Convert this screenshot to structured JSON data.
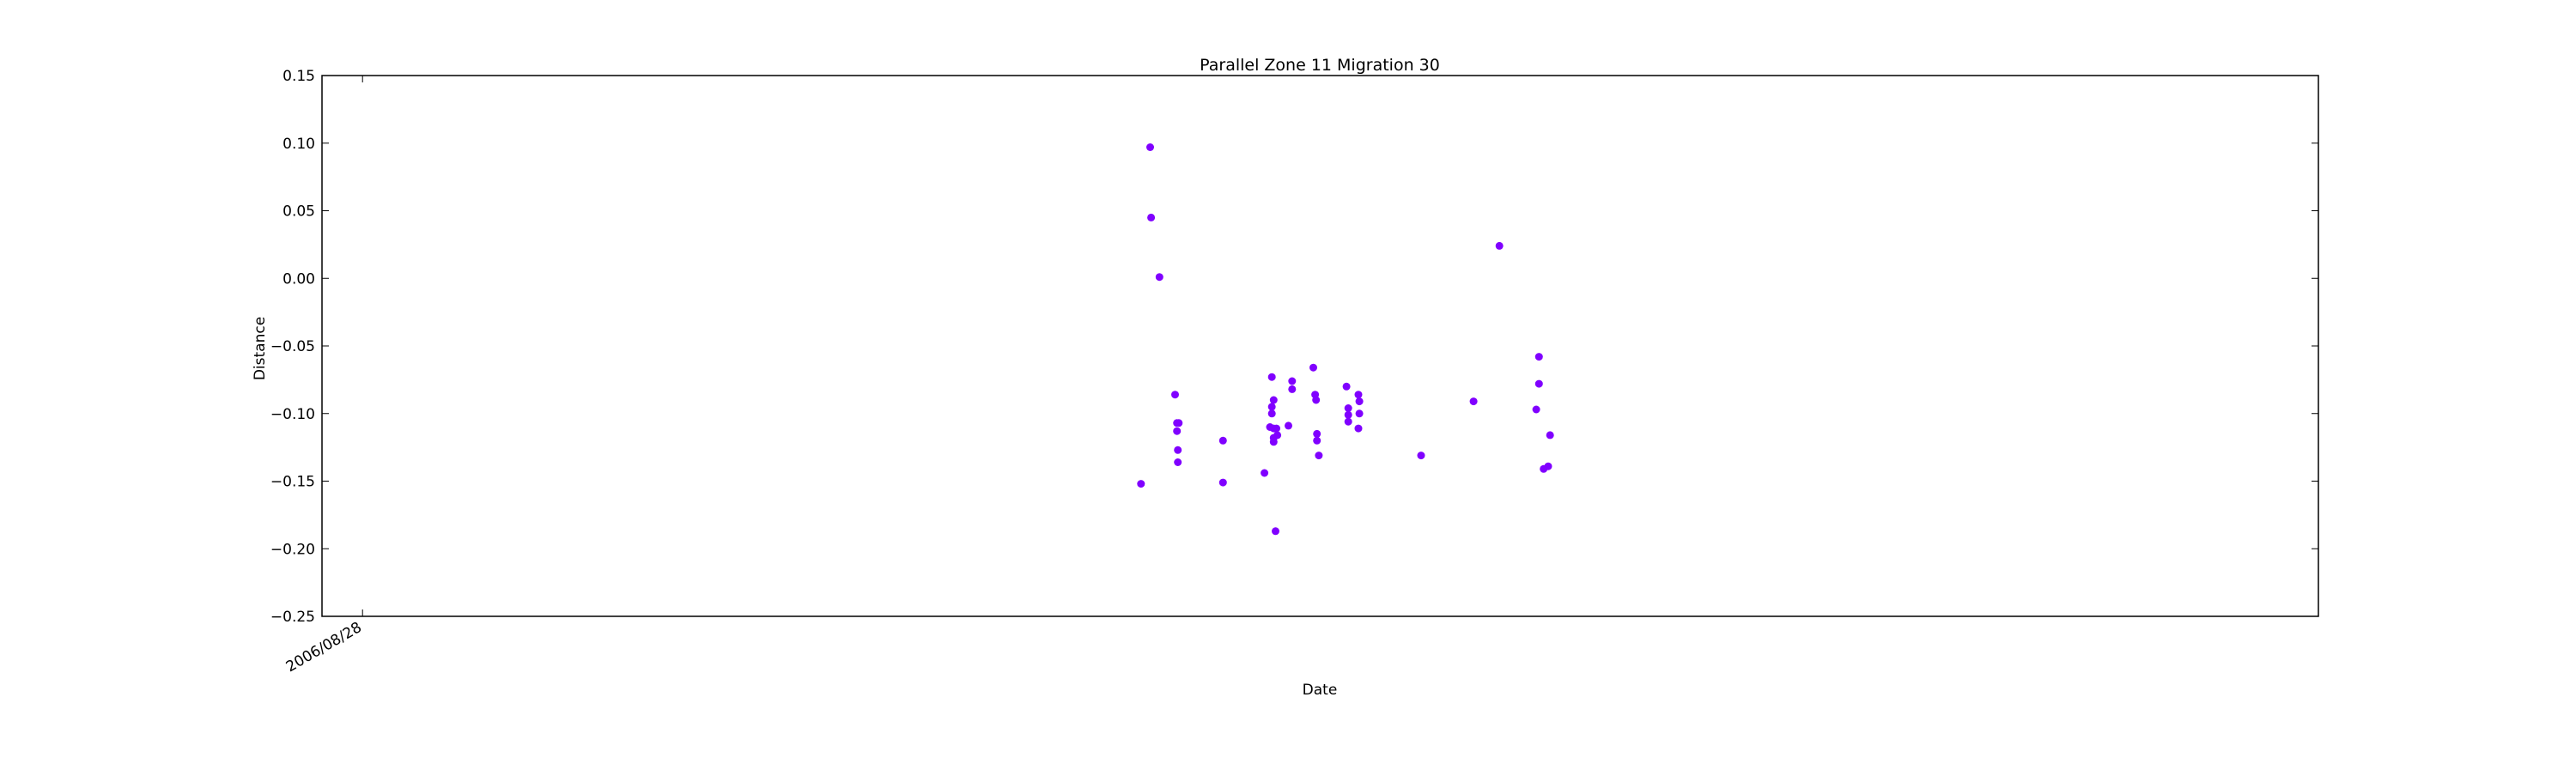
{
  "chart_data": {
    "type": "scatter",
    "title": "Parallel Zone 11 Migration 30",
    "xlabel": "Date",
    "ylabel": "Distance",
    "ylim": [
      -0.25,
      0.15
    ],
    "yticks": [
      -0.25,
      -0.2,
      -0.15,
      -0.1,
      -0.05,
      0.0,
      0.05,
      0.1,
      0.15
    ],
    "ytick_labels": [
      "−0.25",
      "−0.20",
      "−0.15",
      "−0.10",
      "−0.05",
      "0.00",
      "0.05",
      "0.10",
      "0.15"
    ],
    "xlim": [
      "2006/07/15",
      "2012/06/20"
    ],
    "xticks": [
      "2006/08/28"
    ],
    "xtick_labels": [
      "2006/08/28"
    ],
    "grid": false,
    "marker_color": "#8000ff",
    "series": [
      {
        "points": [
          {
            "x": "2008/12/20",
            "y": -0.152
          },
          {
            "x": "2008/12/30",
            "y": 0.097
          },
          {
            "x": "2008/12/31",
            "y": 0.045
          },
          {
            "x": "2009/01/09",
            "y": 0.001
          },
          {
            "x": "2009/01/26",
            "y": -0.086
          },
          {
            "x": "2009/01/28",
            "y": -0.107
          },
          {
            "x": "2009/01/30",
            "y": -0.107
          },
          {
            "x": "2009/01/28",
            "y": -0.113
          },
          {
            "x": "2009/01/29",
            "y": -0.127
          },
          {
            "x": "2009/01/29",
            "y": -0.136
          },
          {
            "x": "2009/03/19",
            "y": -0.12
          },
          {
            "x": "2009/03/19",
            "y": -0.151
          },
          {
            "x": "2009/05/03",
            "y": -0.144
          },
          {
            "x": "2009/05/09",
            "y": -0.11
          },
          {
            "x": "2009/05/11",
            "y": -0.073
          },
          {
            "x": "2009/05/11",
            "y": -0.095
          },
          {
            "x": "2009/05/11",
            "y": -0.1
          },
          {
            "x": "2009/05/13",
            "y": -0.09
          },
          {
            "x": "2009/05/13",
            "y": -0.111
          },
          {
            "x": "2009/05/13",
            "y": -0.118
          },
          {
            "x": "2009/05/13",
            "y": -0.121
          },
          {
            "x": "2009/05/15",
            "y": -0.187
          },
          {
            "x": "2009/05/16",
            "y": -0.111
          },
          {
            "x": "2009/05/17",
            "y": -0.116
          },
          {
            "x": "2009/05/29",
            "y": -0.109
          },
          {
            "x": "2009/06/02",
            "y": -0.076
          },
          {
            "x": "2009/06/02",
            "y": -0.082
          },
          {
            "x": "2009/06/25",
            "y": -0.066
          },
          {
            "x": "2009/06/27",
            "y": -0.086
          },
          {
            "x": "2009/06/28",
            "y": -0.09
          },
          {
            "x": "2009/06/29",
            "y": -0.115
          },
          {
            "x": "2009/06/29",
            "y": -0.12
          },
          {
            "x": "2009/07/01",
            "y": -0.131
          },
          {
            "x": "2009/07/31",
            "y": -0.08
          },
          {
            "x": "2009/08/02",
            "y": -0.096
          },
          {
            "x": "2009/08/02",
            "y": -0.101
          },
          {
            "x": "2009/08/02",
            "y": -0.106
          },
          {
            "x": "2009/08/13",
            "y": -0.086
          },
          {
            "x": "2009/08/14",
            "y": -0.091
          },
          {
            "x": "2009/08/14",
            "y": -0.1
          },
          {
            "x": "2009/08/13",
            "y": -0.111
          },
          {
            "x": "2009/10/20",
            "y": -0.131
          },
          {
            "x": "2009/12/16",
            "y": -0.091
          },
          {
            "x": "2010/01/13",
            "y": 0.024
          },
          {
            "x": "2010/02/22",
            "y": -0.097
          },
          {
            "x": "2010/02/25",
            "y": -0.058
          },
          {
            "x": "2010/02/25",
            "y": -0.078
          },
          {
            "x": "2010/03/02",
            "y": -0.141
          },
          {
            "x": "2010/03/07",
            "y": -0.139
          },
          {
            "x": "2010/03/09",
            "y": -0.116
          }
        ]
      }
    ]
  }
}
